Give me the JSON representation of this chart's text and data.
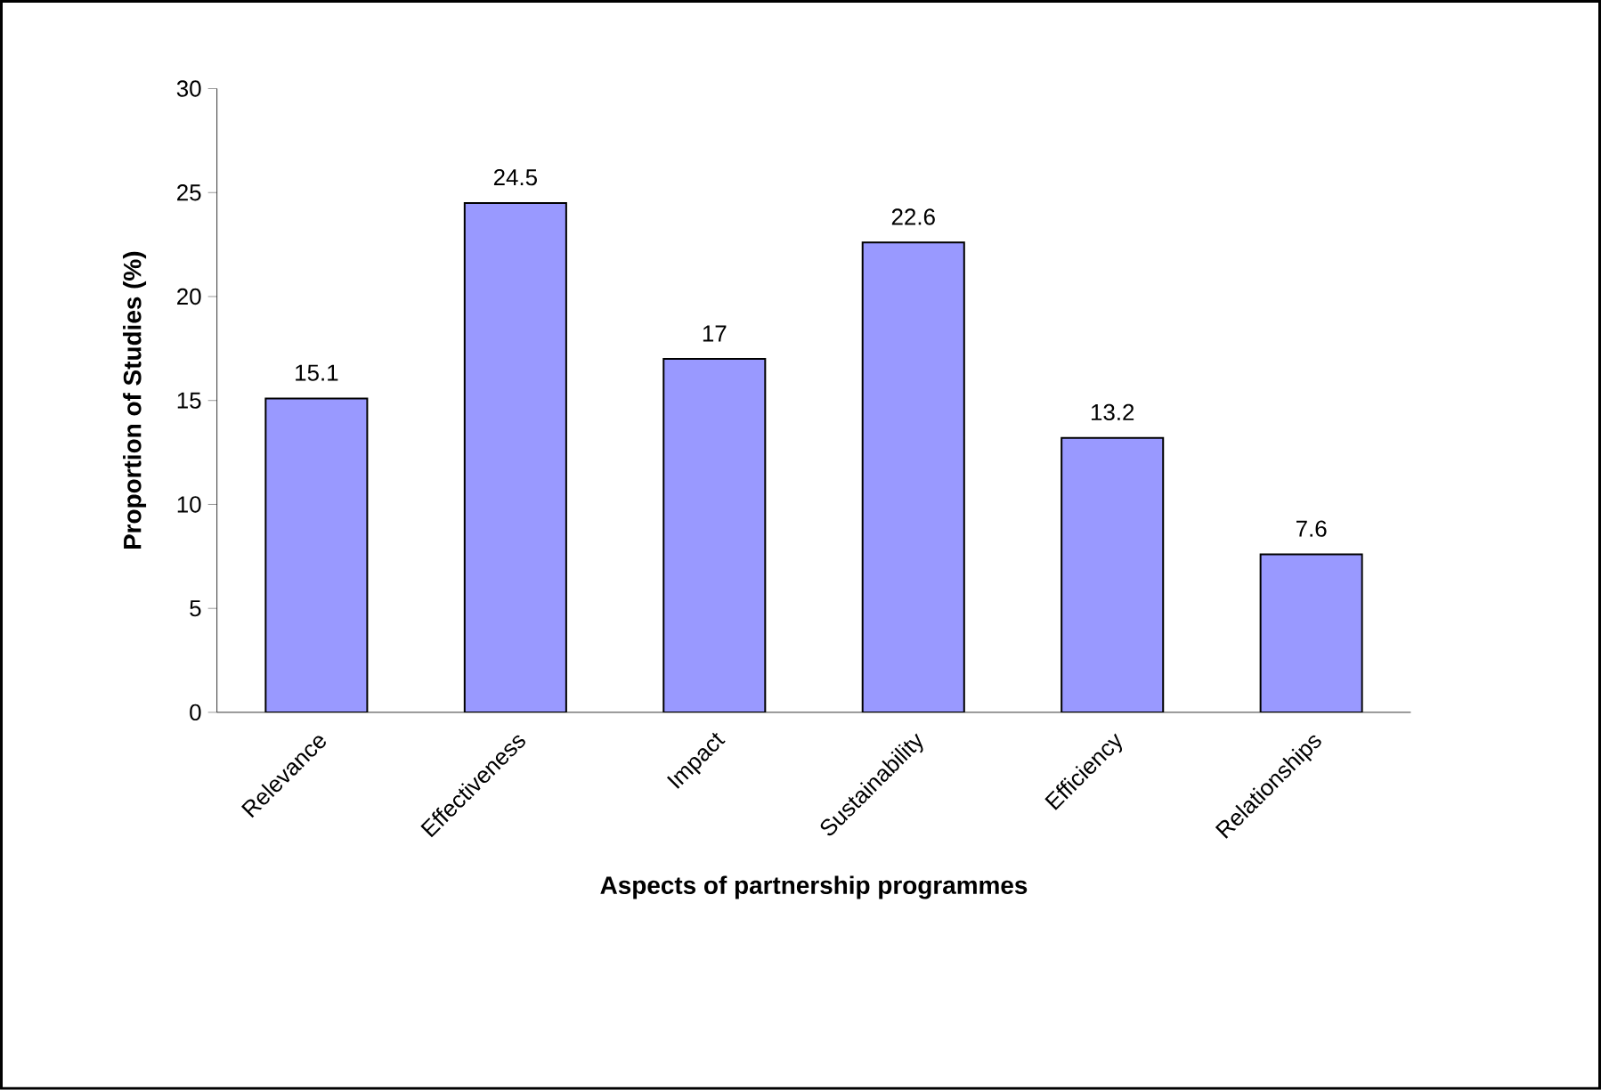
{
  "chart_data": {
    "type": "bar",
    "xlabel": "Aspects of partnership programmes",
    "ylabel": "Proportion of Studies (%)",
    "categories": [
      "Relevance",
      "Effectiveness",
      "Impact",
      "Sustainability",
      "Efficiency",
      "Relationships"
    ],
    "values": [
      15.1,
      24.5,
      17,
      22.6,
      13.2,
      7.6
    ],
    "color": "#9999ff",
    "ylim": [
      0,
      30
    ],
    "yticks": [
      0,
      5,
      10,
      15,
      20,
      25,
      30
    ],
    "data_labels": true
  }
}
